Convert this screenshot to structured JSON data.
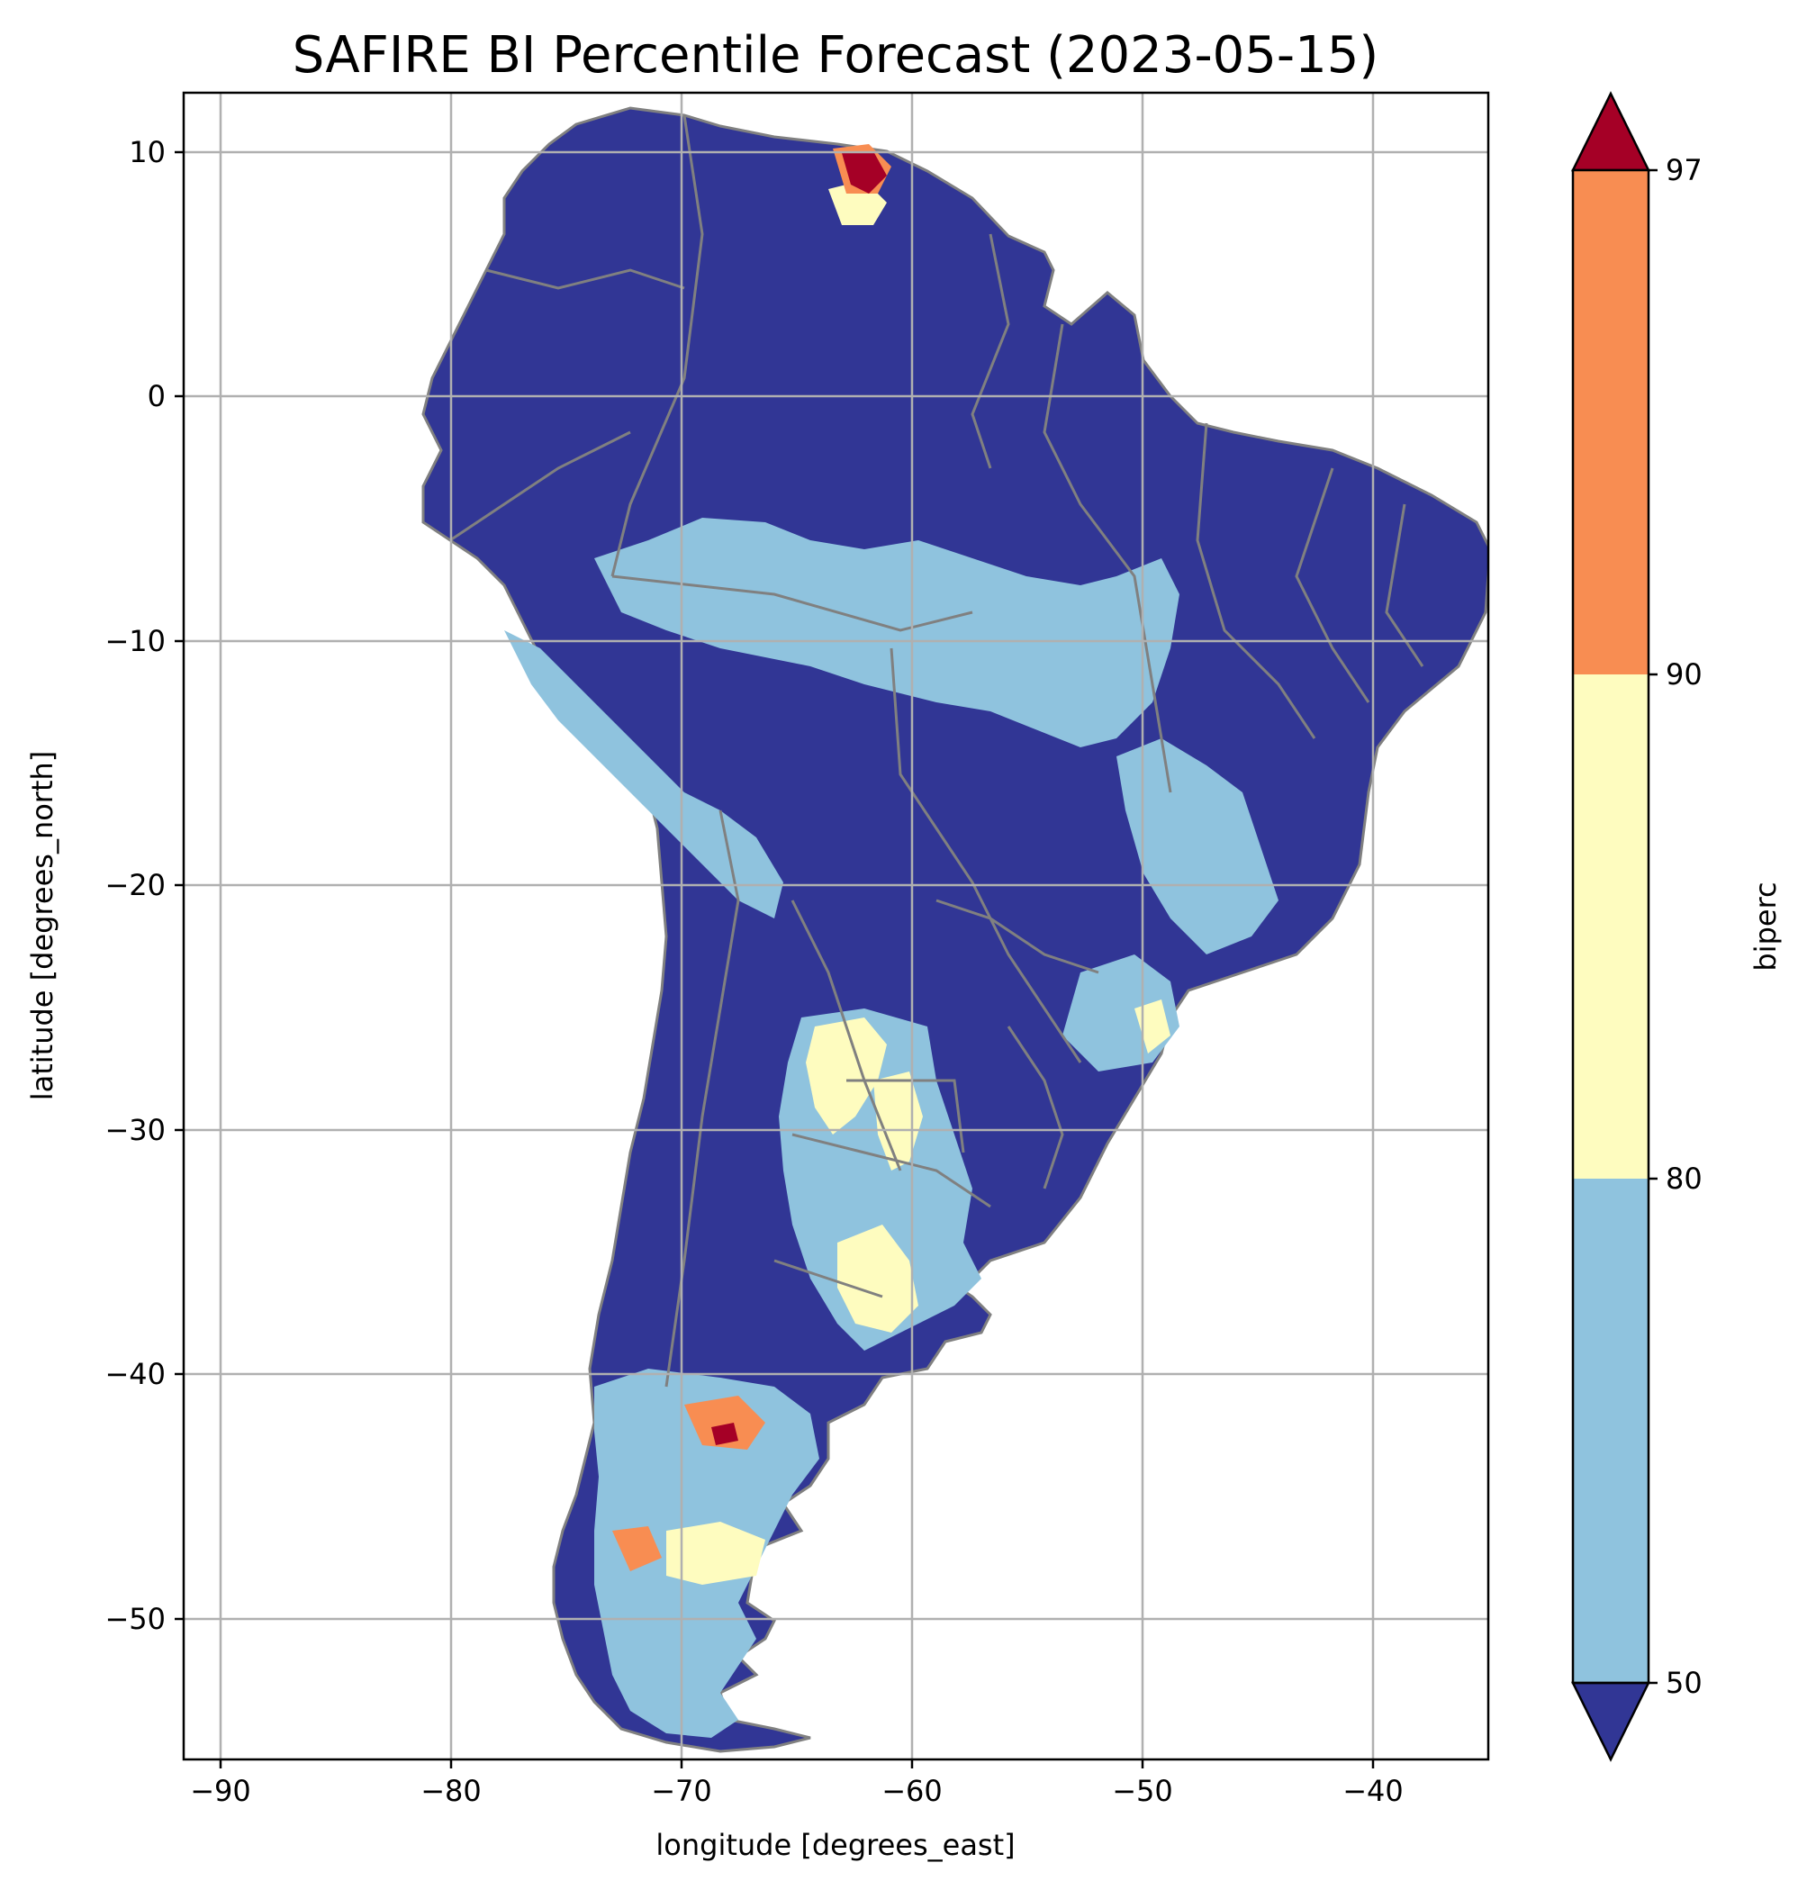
{
  "map": {
    "title": "SAFIRE BI Percentile Forecast (2023-05-15)",
    "xlabel": "longitude [degrees_east]",
    "ylabel": "latitude [degrees_north]",
    "xticks": [
      "−90",
      "−80",
      "−70",
      "−60",
      "−50",
      "−40"
    ],
    "yticks": [
      "10",
      "0",
      "−10",
      "−20",
      "−30",
      "−40",
      "−50"
    ],
    "xlim": [
      -91.5,
      -35
    ],
    "ylim": [
      -56,
      12.5
    ],
    "grid": true
  },
  "colorbar": {
    "label": "biperc",
    "ticks": [
      "97",
      "90",
      "80",
      "50"
    ],
    "bins": [
      {
        "range": "<50",
        "color": "#313695"
      },
      {
        "range": "50-80",
        "color": "#8fc3de"
      },
      {
        "range": "80-90",
        "color": "#fefcbf"
      },
      {
        "range": "90-97",
        "color": "#f88d52"
      },
      {
        "range": ">97",
        "color": "#a50026"
      }
    ]
  },
  "colors": {
    "land_low": "#313695",
    "mid": "#8fc3de",
    "high": "#fefcbf",
    "very_high": "#f88d52",
    "extreme": "#a50026",
    "border": "#808080",
    "grid": "#b0b0b0"
  }
}
